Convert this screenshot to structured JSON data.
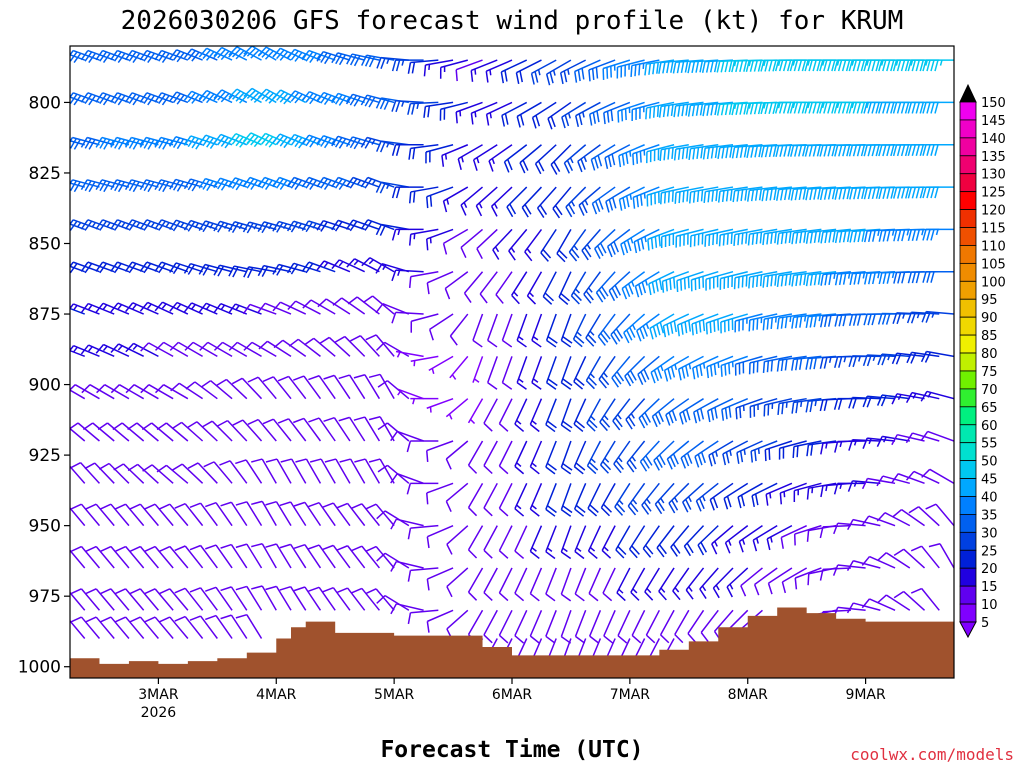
{
  "chart_data": {
    "type": "wind-barb-profile",
    "title": "2026030206 GFS forecast wind profile (kt) for KRUM",
    "xlabel": "Forecast Time (UTC)",
    "ylabel": "",
    "credit": "coolwx.com/models",
    "y_axis": {
      "unit": "hPa",
      "inverted": true,
      "ylim": [
        780,
        1004
      ],
      "ticks": [
        "800",
        "825",
        "850",
        "875",
        "900",
        "925",
        "950",
        "975",
        "1000"
      ]
    },
    "x_axis": {
      "unit": "hours since 2026-03-02 06Z",
      "xlim": [
        0,
        180
      ],
      "ticks": [
        {
          "label": "3MAR",
          "hour": 18,
          "sub": "2026"
        },
        {
          "label": "4MAR",
          "hour": 42
        },
        {
          "label": "5MAR",
          "hour": 66
        },
        {
          "label": "6MAR",
          "hour": 90
        },
        {
          "label": "7MAR",
          "hour": 114
        },
        {
          "label": "8MAR",
          "hour": 138
        },
        {
          "label": "9MAR",
          "hour": 162
        }
      ]
    },
    "colorbar": {
      "labels": [
        "5",
        "10",
        "15",
        "20",
        "25",
        "30",
        "35",
        "40",
        "45",
        "50",
        "55",
        "60",
        "65",
        "70",
        "75",
        "80",
        "85",
        "90",
        "95",
        "100",
        "105",
        "110",
        "115",
        "120",
        "125",
        "130",
        "135",
        "140",
        "145",
        "150"
      ],
      "colors": [
        "#8000ff",
        "#6000f0",
        "#2000e0",
        "#0020d8",
        "#0040e0",
        "#0060f0",
        "#0080ff",
        "#00a8ff",
        "#00c8f0",
        "#00e0d0",
        "#00e8b0",
        "#00f080",
        "#30f030",
        "#70f000",
        "#c0f000",
        "#f0f000",
        "#f0d800",
        "#f0c000",
        "#f0a000",
        "#f08c00",
        "#f07800",
        "#f05000",
        "#f03000",
        "#ff0000",
        "#f00040",
        "#f00070",
        "#f000a0",
        "#f000c8",
        "#f000f0",
        "#000000"
      ]
    },
    "surface_pressure": {
      "hours": [
        0,
        6,
        12,
        18,
        24,
        30,
        36,
        42,
        45,
        48,
        54,
        60,
        66,
        72,
        78,
        84,
        90,
        96,
        102,
        108,
        114,
        120,
        126,
        132,
        138,
        144,
        150,
        156,
        162,
        168,
        174,
        180
      ],
      "hPa": [
        997,
        999,
        998,
        999,
        998,
        997,
        995,
        990,
        986,
        984,
        988,
        988,
        989,
        989,
        989,
        993,
        996,
        996,
        996,
        996,
        996,
        994,
        991,
        986,
        982,
        979,
        981,
        983,
        984,
        984,
        984,
        981
      ]
    },
    "levels_hPa": [
      785,
      800,
      815,
      830,
      845,
      860,
      875,
      890,
      905,
      920,
      935,
      950,
      965,
      980,
      990
    ],
    "time_step_hours": 3,
    "wind_series": [
      {
        "hour": 0,
        "speeds_kt": [
          30,
          30,
          30,
          28,
          25,
          22,
          18,
          15,
          10,
          8,
          8,
          10,
          10,
          10,
          10
        ],
        "dirs_deg": [
          290,
          290,
          285,
          285,
          290,
          290,
          290,
          290,
          300,
          310,
          320,
          320,
          320,
          320,
          320
        ]
      },
      {
        "hour": 24,
        "speeds_kt": [
          30,
          30,
          35,
          30,
          25,
          22,
          15,
          12,
          10,
          8,
          8,
          10,
          10,
          10,
          10
        ],
        "dirs_deg": [
          290,
          290,
          285,
          285,
          290,
          290,
          295,
          300,
          300,
          310,
          310,
          320,
          320,
          320,
          320
        ]
      },
      {
        "hour": 42,
        "speeds_kt": [
          35,
          40,
          45,
          35,
          25,
          20,
          12,
          8,
          8,
          10,
          8,
          8,
          10,
          10,
          10
        ],
        "dirs_deg": [
          300,
          300,
          295,
          290,
          285,
          280,
          290,
          300,
          320,
          320,
          330,
          330,
          330,
          330,
          330
        ]
      },
      {
        "hour": 66,
        "speeds_kt": [
          30,
          30,
          25,
          25,
          20,
          15,
          10,
          8,
          8,
          10,
          10,
          10,
          10,
          10,
          10
        ],
        "dirs_deg": [
          280,
          285,
          285,
          290,
          290,
          300,
          310,
          320,
          330,
          330,
          330,
          320,
          320,
          320,
          320
        ]
      },
      {
        "hour": 84,
        "speeds_kt": [
          10,
          15,
          15,
          15,
          10,
          8,
          8,
          5,
          5,
          8,
          8,
          8,
          8,
          8,
          8
        ],
        "dirs_deg": [
          250,
          250,
          240,
          230,
          230,
          220,
          200,
          200,
          210,
          210,
          210,
          210,
          210,
          210,
          210
        ]
      },
      {
        "hour": 102,
        "speeds_kt": [
          25,
          20,
          20,
          20,
          20,
          20,
          20,
          20,
          20,
          20,
          20,
          15,
          10,
          10,
          10
        ],
        "dirs_deg": [
          240,
          235,
          225,
          220,
          210,
          205,
          200,
          200,
          200,
          200,
          200,
          200,
          200,
          200,
          200
        ]
      },
      {
        "hour": 126,
        "speeds_kt": [
          40,
          40,
          40,
          40,
          40,
          40,
          40,
          35,
          30,
          30,
          25,
          20,
          15,
          10,
          10
        ],
        "dirs_deg": [
          265,
          262,
          260,
          258,
          255,
          250,
          245,
          240,
          235,
          230,
          225,
          220,
          215,
          210,
          210
        ]
      },
      {
        "hour": 150,
        "speeds_kt": [
          45,
          45,
          40,
          40,
          40,
          40,
          35,
          30,
          25,
          20,
          15,
          12,
          10,
          10,
          10
        ],
        "dirs_deg": [
          270,
          270,
          268,
          265,
          262,
          262,
          262,
          262,
          260,
          255,
          250,
          245,
          240,
          240,
          240
        ]
      },
      {
        "hour": 180,
        "speeds_kt": [
          45,
          40,
          40,
          40,
          35,
          30,
          25,
          20,
          15,
          10,
          10,
          10,
          10,
          10,
          10
        ],
        "dirs_deg": [
          270,
          270,
          270,
          270,
          270,
          270,
          275,
          280,
          285,
          290,
          300,
          320,
          330,
          330,
          330
        ]
      }
    ]
  }
}
